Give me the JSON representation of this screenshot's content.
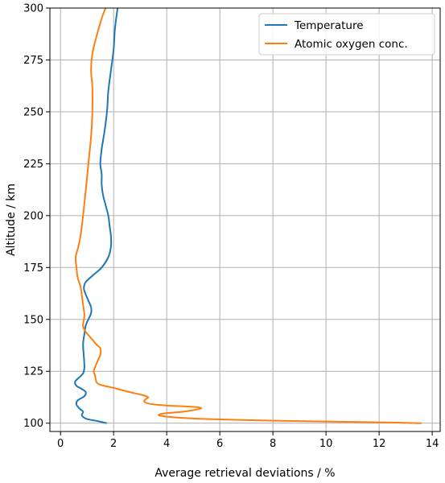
{
  "chart_data": {
    "type": "line",
    "title": "",
    "xlabel": "Average retrieval deviations / %",
    "ylabel": "Altitude / km",
    "xlim": [
      -0.4,
      14.3
    ],
    "ylim": [
      96,
      300
    ],
    "xticks": [
      0,
      2,
      4,
      6,
      8,
      10,
      12,
      14
    ],
    "yticks": [
      100,
      125,
      150,
      175,
      200,
      225,
      250,
      275,
      300
    ],
    "grid": true,
    "legend_position": "top-right",
    "series": [
      {
        "name": "Temperature",
        "color": "#1f77b4",
        "points": [
          [
            1.75,
            100
          ],
          [
            1.4,
            101
          ],
          [
            1.0,
            102
          ],
          [
            0.85,
            103
          ],
          [
            0.8,
            104
          ],
          [
            0.85,
            105.5
          ],
          [
            0.72,
            107
          ],
          [
            0.6,
            109
          ],
          [
            0.65,
            111
          ],
          [
            0.9,
            113
          ],
          [
            0.95,
            115
          ],
          [
            0.8,
            116.5
          ],
          [
            0.6,
            118
          ],
          [
            0.55,
            120
          ],
          [
            0.7,
            122
          ],
          [
            0.85,
            124
          ],
          [
            0.9,
            127
          ],
          [
            0.88,
            132
          ],
          [
            0.85,
            138
          ],
          [
            0.9,
            143
          ],
          [
            0.95,
            147
          ],
          [
            1.05,
            150
          ],
          [
            1.15,
            153
          ],
          [
            1.15,
            156
          ],
          [
            1.05,
            159
          ],
          [
            0.95,
            162
          ],
          [
            0.88,
            165
          ],
          [
            0.95,
            168
          ],
          [
            1.2,
            171
          ],
          [
            1.55,
            175
          ],
          [
            1.8,
            180
          ],
          [
            1.9,
            185
          ],
          [
            1.9,
            190
          ],
          [
            1.85,
            195
          ],
          [
            1.8,
            200
          ],
          [
            1.7,
            205
          ],
          [
            1.6,
            210
          ],
          [
            1.55,
            215
          ],
          [
            1.55,
            220
          ],
          [
            1.5,
            225
          ],
          [
            1.55,
            232
          ],
          [
            1.65,
            240
          ],
          [
            1.75,
            250
          ],
          [
            1.8,
            260
          ],
          [
            1.9,
            270
          ],
          [
            2.0,
            280
          ],
          [
            2.05,
            290
          ],
          [
            2.15,
            300
          ]
        ]
      },
      {
        "name": "Atomic oxygen conc.",
        "color": "#ff7f0e",
        "points": [
          [
            13.6,
            100
          ],
          [
            12.5,
            100.3
          ],
          [
            11.0,
            100.6
          ],
          [
            9.0,
            101
          ],
          [
            7.0,
            101.5
          ],
          [
            5.5,
            102
          ],
          [
            4.3,
            102.8
          ],
          [
            3.8,
            103.5
          ],
          [
            3.7,
            104
          ],
          [
            3.9,
            104.7
          ],
          [
            4.6,
            105.5
          ],
          [
            5.1,
            106.5
          ],
          [
            5.3,
            107.3
          ],
          [
            5.0,
            107.9
          ],
          [
            4.3,
            108.3
          ],
          [
            3.7,
            108.8
          ],
          [
            3.3,
            109.5
          ],
          [
            3.15,
            110.5
          ],
          [
            3.2,
            111.5
          ],
          [
            3.3,
            112.5
          ],
          [
            3.1,
            113.5
          ],
          [
            2.6,
            115
          ],
          [
            2.0,
            117
          ],
          [
            1.5,
            118.5
          ],
          [
            1.35,
            120
          ],
          [
            1.3,
            123
          ],
          [
            1.25,
            125
          ],
          [
            1.3,
            127
          ],
          [
            1.4,
            130
          ],
          [
            1.5,
            133
          ],
          [
            1.5,
            136
          ],
          [
            1.35,
            138
          ],
          [
            1.15,
            141
          ],
          [
            0.95,
            144
          ],
          [
            0.85,
            147
          ],
          [
            0.9,
            152
          ],
          [
            0.85,
            157
          ],
          [
            0.8,
            162
          ],
          [
            0.75,
            166
          ],
          [
            0.65,
            170
          ],
          [
            0.6,
            175
          ],
          [
            0.57,
            180
          ],
          [
            0.65,
            184
          ],
          [
            0.75,
            190
          ],
          [
            0.85,
            200
          ],
          [
            0.95,
            212
          ],
          [
            1.05,
            225
          ],
          [
            1.15,
            238
          ],
          [
            1.2,
            250
          ],
          [
            1.2,
            262
          ],
          [
            1.15,
            270
          ],
          [
            1.2,
            278
          ],
          [
            1.35,
            286
          ],
          [
            1.55,
            295
          ],
          [
            1.7,
            300
          ]
        ]
      }
    ]
  }
}
